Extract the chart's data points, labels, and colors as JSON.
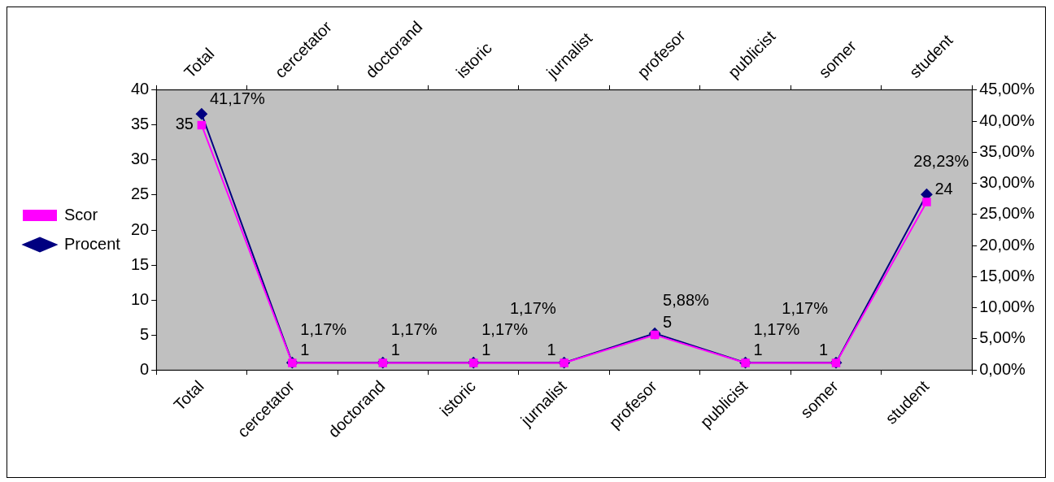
{
  "chart_data": {
    "type": "line",
    "categories": [
      "Total",
      "cercetator",
      "doctorand",
      "istoric",
      "jurnalist",
      "profesor",
      "publicist",
      "somer",
      "student"
    ],
    "series": [
      {
        "name": "Scor",
        "color": "#ff00ff",
        "marker": "square",
        "values": [
          35,
          1,
          1,
          1,
          1,
          5,
          1,
          1,
          24
        ],
        "value_labels": [
          "35",
          "1",
          "1",
          "1",
          "1",
          "5",
          "1",
          "1",
          "24"
        ]
      },
      {
        "name": "Procent",
        "color": "#000080",
        "marker": "diamond",
        "axis": "y2",
        "values": [
          41.17,
          1.17,
          1.17,
          1.17,
          1.17,
          5.88,
          1.17,
          1.17,
          28.23
        ],
        "value_labels": [
          "41,17%",
          "1,17%",
          "1,17%",
          "1,17%",
          "1,17%",
          "5,88%",
          "1,17%",
          "1,17%",
          "28,23%"
        ]
      }
    ],
    "ylim": [
      0,
      40
    ],
    "yticks": [
      0,
      5,
      10,
      15,
      20,
      25,
      30,
      35,
      40
    ],
    "y2lim": [
      0,
      45
    ],
    "y2ticks": [
      {
        "value": 0,
        "label": "0,00%"
      },
      {
        "value": 5,
        "label": "5,00%"
      },
      {
        "value": 10,
        "label": "10,00%"
      },
      {
        "value": 15,
        "label": "15,00%"
      },
      {
        "value": 20,
        "label": "20,00%"
      },
      {
        "value": 25,
        "label": "25,00%"
      },
      {
        "value": 30,
        "label": "30,00%"
      },
      {
        "value": 35,
        "label": "35,00%"
      },
      {
        "value": 40,
        "label": "40,00%"
      },
      {
        "value": 45,
        "label": "45,00%"
      }
    ],
    "grid": false,
    "legend": "left"
  }
}
